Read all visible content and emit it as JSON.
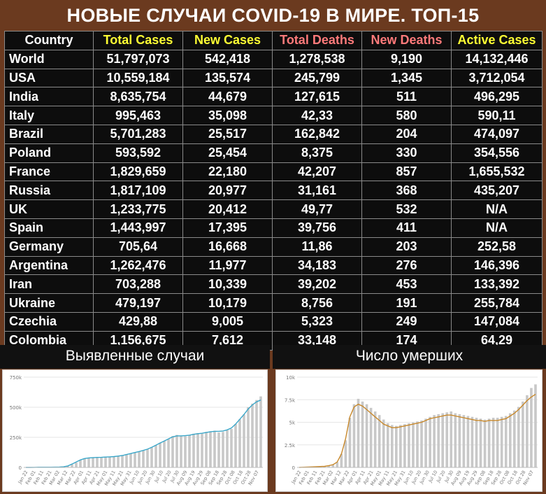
{
  "title": "НОВЫЕ СЛУЧАИ COVID-19 В МИРЕ. ТОП-15",
  "table": {
    "headers": [
      {
        "label": "Country",
        "color": "#ffffff"
      },
      {
        "label": "Total Cases",
        "color": "#ffff33"
      },
      {
        "label": "New Cases",
        "color": "#ffff33"
      },
      {
        "label": "Total Deaths",
        "color": "#ff7a7a"
      },
      {
        "label": "New Deaths",
        "color": "#ff7a7a"
      },
      {
        "label": "Active Cases",
        "color": "#ffff33"
      }
    ],
    "rows": [
      [
        "World",
        "51,797,073",
        "542,418",
        "1,278,538",
        "9,190",
        "14,132,446"
      ],
      [
        "USA",
        "10,559,184",
        "135,574",
        "245,799",
        "1,345",
        "3,712,054"
      ],
      [
        "India",
        "8,635,754",
        "44,679",
        "127,615",
        "511",
        "496,295"
      ],
      [
        "Italy",
        "995,463",
        "35,098",
        "42,33",
        "580",
        "590,11"
      ],
      [
        "Brazil",
        "5,701,283",
        "25,517",
        "162,842",
        "204",
        "474,097"
      ],
      [
        "Poland",
        "593,592",
        "25,454",
        "8,375",
        "330",
        "354,556"
      ],
      [
        "France",
        "1,829,659",
        "22,180",
        "42,207",
        "857",
        "1,655,532"
      ],
      [
        "Russia",
        "1,817,109",
        "20,977",
        "31,161",
        "368",
        "435,207"
      ],
      [
        "UK",
        "1,233,775",
        "20,412",
        "49,77",
        "532",
        "N/A"
      ],
      [
        "Spain",
        "1,443,997",
        "17,395",
        "39,756",
        "411",
        "N/A"
      ],
      [
        "Germany",
        "705,64",
        "16,668",
        "11,86",
        "203",
        "252,58"
      ],
      [
        "Argentina",
        "1,262,476",
        "11,977",
        "34,183",
        "276",
        "146,396"
      ],
      [
        "Iran",
        "703,288",
        "10,339",
        "39,202",
        "453",
        "133,392"
      ],
      [
        "Ukraine",
        "479,197",
        "10,179",
        "8,756",
        "191",
        "255,784"
      ],
      [
        "Czechia",
        "429,88",
        "9,005",
        "5,323",
        "249",
        "147,084"
      ],
      [
        "Colombia",
        "1,156,675",
        "7,612",
        "33,148",
        "174",
        "64,29"
      ]
    ]
  },
  "chart_data": [
    {
      "type": "bar",
      "title": "Выявленные случаи",
      "ylim": [
        0,
        750000
      ],
      "yticks": [
        0,
        250000,
        500000,
        750000
      ],
      "ytick_labels": [
        "0",
        "250k",
        "500k",
        "750k"
      ],
      "x_tick_labels": [
        "Jan 22",
        "Feb 01",
        "Feb 11",
        "Feb 21",
        "Mar 02",
        "Mar 12",
        "Mar 22",
        "Apr 01",
        "Apr 11",
        "Apr 21",
        "May 01",
        "May 11",
        "May 21",
        "May 31",
        "Jun 10",
        "Jun 20",
        "Jun 30",
        "Jul 10",
        "Jul 20",
        "Jul 30",
        "Aug 09",
        "Aug 19",
        "Aug 29",
        "Sep 08",
        "Sep 18",
        "Sep 28",
        "Oct 08",
        "Oct 18",
        "Oct 28",
        "Nov 07"
      ],
      "bar_color": "#c8c8c8",
      "line_color": "#3aa6c8",
      "bars": [
        0,
        0,
        1000,
        2000,
        1500,
        1000,
        2000,
        3000,
        2000,
        3000,
        10000,
        25000,
        40000,
        60000,
        75000,
        80000,
        85000,
        80000,
        85000,
        90000,
        85000,
        90000,
        95000,
        100000,
        110000,
        115000,
        125000,
        130000,
        140000,
        150000,
        165000,
        185000,
        205000,
        220000,
        235000,
        260000,
        270000,
        265000,
        260000,
        270000,
        280000,
        285000,
        280000,
        295000,
        300000,
        305000,
        290000,
        295000,
        310000,
        320000,
        360000,
        400000,
        440000,
        500000,
        530000,
        560000,
        590000
      ],
      "trend": [
        0,
        0,
        800,
        1500,
        1500,
        1500,
        2000,
        2500,
        3000,
        5000,
        12000,
        28000,
        45000,
        62000,
        74000,
        79000,
        81000,
        83000,
        84000,
        86000,
        88000,
        90000,
        94000,
        99000,
        107000,
        115000,
        124000,
        132000,
        141000,
        152000,
        167000,
        185000,
        203000,
        220000,
        237000,
        254000,
        262000,
        262000,
        264000,
        268000,
        275000,
        280000,
        284000,
        290000,
        296000,
        300000,
        300000,
        303000,
        312000,
        328000,
        360000,
        400000,
        440000,
        485000,
        520000,
        545000,
        560000
      ]
    },
    {
      "type": "bar",
      "title": "Число умерших",
      "ylim": [
        0,
        10000
      ],
      "yticks": [
        0,
        2500,
        5000,
        7500,
        10000
      ],
      "ytick_labels": [
        "0",
        "2.5k",
        "5k",
        "7.5k",
        "10k"
      ],
      "x_tick_labels": [
        "Jan 22",
        "Feb 01",
        "Feb 11",
        "Feb 21",
        "Mar 02",
        "Mar 12",
        "Mar 22",
        "Apr 01",
        "Apr 11",
        "Apr 21",
        "May 01",
        "May 11",
        "May 21",
        "May 31",
        "Jun 10",
        "Jun 20",
        "Jun 30",
        "Jul 10",
        "Jul 20",
        "Jul 30",
        "Aug 09",
        "Aug 19",
        "Aug 29",
        "Sep 08",
        "Sep 18",
        "Sep 28",
        "Oct 08",
        "Oct 18",
        "Oct 28",
        "Nov 07"
      ],
      "bar_color": "#c8c8c8",
      "line_color": "#c8882a",
      "bars": [
        0,
        20,
        40,
        60,
        80,
        100,
        100,
        200,
        300,
        600,
        1500,
        3000,
        5500,
        7000,
        7600,
        7300,
        7000,
        6600,
        6200,
        5800,
        5300,
        4900,
        4700,
        4600,
        4700,
        4800,
        4900,
        5000,
        5100,
        5200,
        5400,
        5600,
        5800,
        5900,
        6000,
        6100,
        6200,
        6000,
        5900,
        5800,
        5700,
        5600,
        5500,
        5400,
        5300,
        5400,
        5500,
        5500,
        5600,
        5700,
        6000,
        6300,
        6700,
        7300,
        8000,
        8800,
        9200
      ],
      "trend": [
        0,
        20,
        40,
        60,
        80,
        100,
        120,
        200,
        300,
        600,
        1500,
        3200,
        5600,
        6700,
        7000,
        6800,
        6400,
        6000,
        5600,
        5200,
        4800,
        4600,
        4400,
        4400,
        4500,
        4600,
        4700,
        4800,
        4900,
        5000,
        5200,
        5400,
        5500,
        5600,
        5700,
        5800,
        5800,
        5700,
        5600,
        5500,
        5400,
        5300,
        5200,
        5200,
        5100,
        5200,
        5200,
        5200,
        5300,
        5400,
        5700,
        6000,
        6400,
        6900,
        7400,
        7800,
        8100
      ]
    }
  ]
}
